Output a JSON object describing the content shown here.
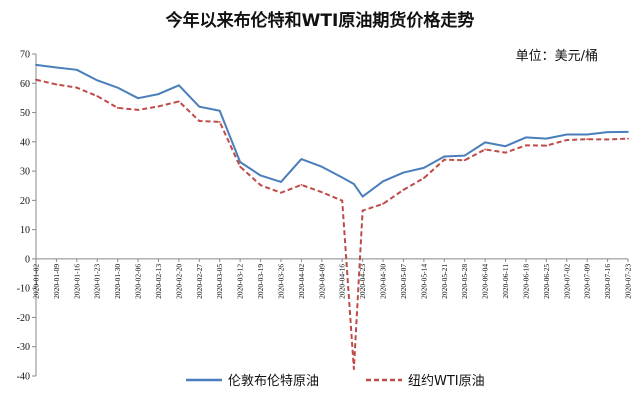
{
  "chart_data": {
    "type": "line",
    "title": "今年以来布伦特和WTI原油期货价格走势",
    "unit_label": "单位：美元/桶",
    "ylim": [
      -40,
      70
    ],
    "yticks": [
      -40,
      -30,
      -20,
      -10,
      0,
      10,
      20,
      30,
      40,
      50,
      60,
      70
    ],
    "grid": false,
    "legend_position": "bottom",
    "x": [
      "2020-01-02",
      "2020-01-09",
      "2020-01-16",
      "2020-01-23",
      "2020-01-30",
      "2020-02-06",
      "2020-02-13",
      "2020-02-20",
      "2020-02-27",
      "2020-03-05",
      "2020-03-12",
      "2020-03-19",
      "2020-03-26",
      "2020-04-02",
      "2020-04-09",
      "2020-04-16",
      "2020-04-20",
      "2020-04-23",
      "2020-04-30",
      "2020-05-07",
      "2020-05-14",
      "2020-05-21",
      "2020-05-28",
      "2020-06-04",
      "2020-06-11",
      "2020-06-18",
      "2020-06-25",
      "2020-07-02",
      "2020-07-09",
      "2020-07-16",
      "2020-07-23"
    ],
    "xticks": [
      "2020-01-02",
      "2020-01-09",
      "2020-01-16",
      "2020-01-23",
      "2020-01-30",
      "2020-02-06",
      "2020-02-13",
      "2020-02-20",
      "2020-02-27",
      "2020-03-05",
      "2020-03-12",
      "2020-03-19",
      "2020-03-26",
      "2020-04-02",
      "2020-04-09",
      "2020-04-16",
      "2020-04-23",
      "2020-04-30",
      "2020-05-07",
      "2020-05-14",
      "2020-05-21",
      "2020-05-28",
      "2020-06-04",
      "2020-06-11",
      "2020-06-18",
      "2020-06-25",
      "2020-07-02",
      "2020-07-09",
      "2020-07-16",
      "2020-07-23"
    ],
    "series": [
      {
        "name": "伦敦布伦特原油",
        "color": "#4A7EBB",
        "dash": "solid",
        "values": [
          66.3,
          65.4,
          64.6,
          61.0,
          58.5,
          54.9,
          56.3,
          59.3,
          52.0,
          50.6,
          33.1,
          28.5,
          26.3,
          34.1,
          31.5,
          27.8,
          25.6,
          21.3,
          26.5,
          29.5,
          31.1,
          35.0,
          35.3,
          39.8,
          38.5,
          41.5,
          41.1,
          42.5,
          42.5,
          43.3,
          43.4
        ]
      },
      {
        "name": "纽约WTI原油",
        "color": "#BE4B48",
        "dash": "dashed",
        "values": [
          61.2,
          59.6,
          58.5,
          55.6,
          51.6,
          50.9,
          52.1,
          53.8,
          47.1,
          46.8,
          31.5,
          25.2,
          22.6,
          25.3,
          22.8,
          19.9,
          -37.6,
          16.5,
          18.8,
          23.6,
          27.6,
          33.9,
          33.7,
          37.4,
          36.3,
          38.8,
          38.7,
          40.6,
          40.9,
          40.8,
          41.1
        ]
      }
    ]
  }
}
